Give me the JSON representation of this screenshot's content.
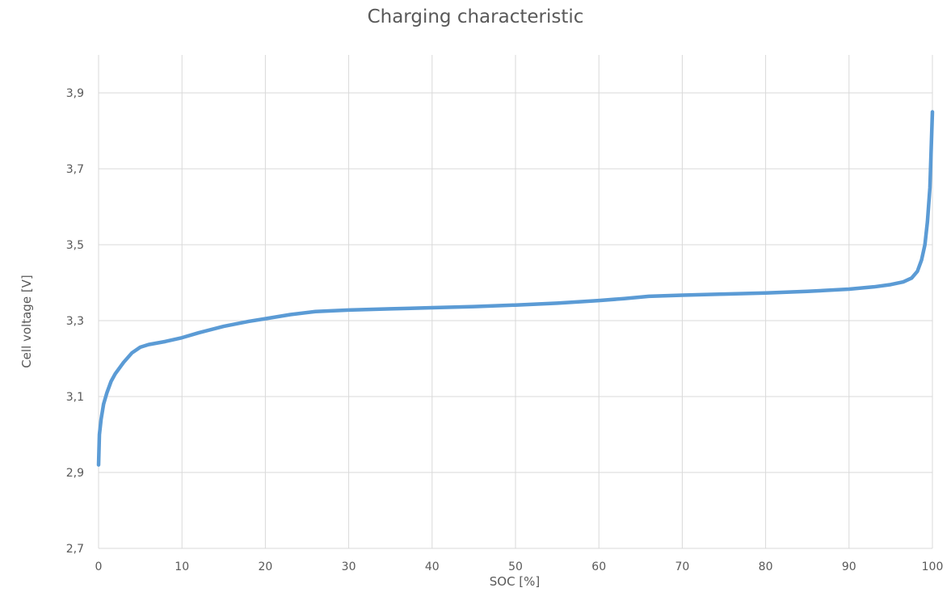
{
  "chart_data": {
    "type": "line",
    "title": "Charging characteristic",
    "xlabel": "SOC [%]",
    "ylabel": "Cell voltage [V]",
    "xlim": [
      0,
      100
    ],
    "ylim": [
      2.7,
      4.0
    ],
    "x_ticks": [
      0,
      10,
      20,
      30,
      40,
      50,
      60,
      70,
      80,
      90,
      100
    ],
    "y_ticks": [
      2.7,
      2.9,
      3.1,
      3.3,
      3.5,
      3.7,
      3.9
    ],
    "x_tick_labels": [
      "0",
      "10",
      "20",
      "30",
      "40",
      "50",
      "60",
      "70",
      "80",
      "90",
      "100"
    ],
    "y_tick_labels": [
      "2,7",
      "2,9",
      "3,1",
      "3,3",
      "3,5",
      "3,7",
      "3,9"
    ],
    "grid": true,
    "legend": "none",
    "line_color": "#5b9bd5",
    "series": [
      {
        "x": [
          0,
          0.1,
          0.3,
          0.6,
          1,
          1.5,
          2,
          3,
          4,
          5,
          6,
          8,
          10,
          12,
          15,
          18,
          20,
          23,
          26,
          30,
          35,
          40,
          45,
          50,
          55,
          60,
          63,
          66,
          70,
          75,
          80,
          85,
          90,
          93,
          95,
          96.5,
          97.5,
          98.2,
          98.7,
          99.1,
          99.4,
          99.7,
          100
        ],
        "y": [
          2.92,
          3.0,
          3.04,
          3.08,
          3.11,
          3.14,
          3.16,
          3.19,
          3.215,
          3.23,
          3.237,
          3.245,
          3.255,
          3.268,
          3.285,
          3.298,
          3.305,
          3.316,
          3.324,
          3.328,
          3.331,
          3.334,
          3.337,
          3.341,
          3.346,
          3.353,
          3.358,
          3.364,
          3.367,
          3.37,
          3.373,
          3.377,
          3.383,
          3.389,
          3.395,
          3.402,
          3.412,
          3.43,
          3.46,
          3.5,
          3.56,
          3.65,
          3.85
        ]
      }
    ]
  }
}
